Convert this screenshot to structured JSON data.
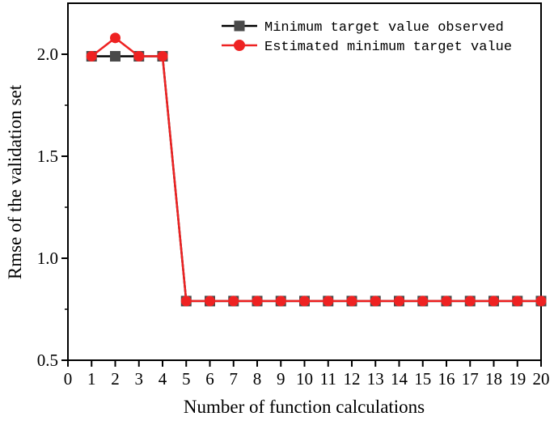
{
  "chart_data": {
    "type": "line",
    "title": "",
    "xlabel": "Number of function calculations",
    "ylabel": "Rmse of the validation set",
    "xlim": [
      0,
      20
    ],
    "ylim": [
      0.5,
      2.25
    ],
    "x_ticks": [
      0,
      1,
      2,
      3,
      4,
      5,
      6,
      7,
      8,
      9,
      10,
      11,
      12,
      13,
      14,
      15,
      16,
      17,
      18,
      19,
      20
    ],
    "y_ticks": [
      0.5,
      1.0,
      1.5,
      2.0
    ],
    "y_tick_labels": [
      "0.5",
      "1.0",
      "1.5",
      "2.0"
    ],
    "grid": false,
    "legend_position": "top-right",
    "x": [
      1,
      2,
      3,
      4,
      5,
      6,
      7,
      8,
      9,
      10,
      11,
      12,
      13,
      14,
      15,
      16,
      17,
      18,
      19,
      20
    ],
    "series": [
      {
        "name": "Minimum target value observed",
        "color": "#4a4a4a",
        "marker": "square",
        "values": [
          1.99,
          1.99,
          1.99,
          1.99,
          0.79,
          0.79,
          0.79,
          0.79,
          0.79,
          0.79,
          0.79,
          0.79,
          0.79,
          0.79,
          0.79,
          0.79,
          0.79,
          0.79,
          0.79,
          0.79
        ]
      },
      {
        "name": "Estimated minimum target value",
        "color": "#ee2222",
        "marker": "circle",
        "values": [
          1.99,
          2.08,
          1.99,
          1.99,
          0.79,
          0.79,
          0.79,
          0.79,
          0.79,
          0.79,
          0.79,
          0.79,
          0.79,
          0.79,
          0.79,
          0.79,
          0.79,
          0.79,
          0.79,
          0.79
        ]
      }
    ]
  }
}
